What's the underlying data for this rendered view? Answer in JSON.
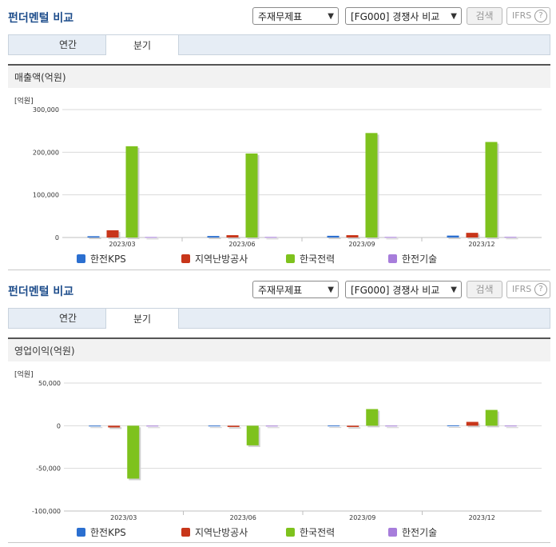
{
  "panels": [
    {
      "title": "펀더멘털 비교",
      "select1": "주재무제표",
      "select2": "[FG000] 경쟁사 비교",
      "search_label": "검색",
      "ifrs_label": "IFRS",
      "ifrs_help": "?",
      "tabs": [
        {
          "label": "연간"
        },
        {
          "label": "분기"
        }
      ],
      "section_title": "매출액(억원)",
      "unit": "[억원]"
    },
    {
      "title": "펀더멘털 비교",
      "select1": "주재무제표",
      "select2": "[FG000] 경쟁사 비교",
      "search_label": "검색",
      "ifrs_label": "IFRS",
      "ifrs_help": "?",
      "tabs": [
        {
          "label": "연간"
        },
        {
          "label": "분기"
        }
      ],
      "section_title": "영업이익(억원)",
      "unit": "[억원]"
    }
  ],
  "chart_data": [
    {
      "type": "bar",
      "title": "매출액(억원)",
      "ylabel": "[억원]",
      "categories": [
        "2023/03",
        "2023/06",
        "2023/09",
        "2023/12"
      ],
      "ylim": [
        0,
        300000
      ],
      "yticks": [
        0,
        100000,
        200000,
        300000
      ],
      "ytick_labels": [
        "0",
        "100,000",
        "200,000",
        "300,000"
      ],
      "grid": true,
      "legend": "bottom",
      "series": [
        {
          "name": "한전KPS",
          "color": "#2b6fd0",
          "values": [
            3000,
            3500,
            4000,
            4500
          ]
        },
        {
          "name": "지역난방공사",
          "color": "#c8361a",
          "values": [
            17000,
            5500,
            5500,
            11000
          ]
        },
        {
          "name": "한국전력",
          "color": "#7ec21d",
          "values": [
            214000,
            197000,
            245000,
            224000
          ]
        },
        {
          "name": "한전기술",
          "color": "#a77ddb",
          "values": [
            1200,
            1300,
            1300,
            1500
          ]
        }
      ]
    },
    {
      "type": "bar",
      "title": "영업이익(억원)",
      "ylabel": "[억원]",
      "categories": [
        "2023/03",
        "2023/06",
        "2023/09",
        "2023/12"
      ],
      "ylim": [
        -100000,
        50000
      ],
      "yticks": [
        -100000,
        -50000,
        0,
        50000
      ],
      "ytick_labels": [
        "-100,000",
        "-50,000",
        "0",
        "50,000"
      ],
      "grid": true,
      "legend": "bottom",
      "series": [
        {
          "name": "한전KPS",
          "color": "#2b6fd0",
          "values": [
            100,
            150,
            200,
            300
          ]
        },
        {
          "name": "지역난방공사",
          "color": "#c8361a",
          "values": [
            -2000,
            -1500,
            -1500,
            4500
          ]
        },
        {
          "name": "한국전력",
          "color": "#7ec21d",
          "values": [
            -62000,
            -23000,
            19500,
            18500
          ]
        },
        {
          "name": "한전기술",
          "color": "#a77ddb",
          "values": [
            50,
            50,
            80,
            100
          ]
        }
      ]
    }
  ]
}
